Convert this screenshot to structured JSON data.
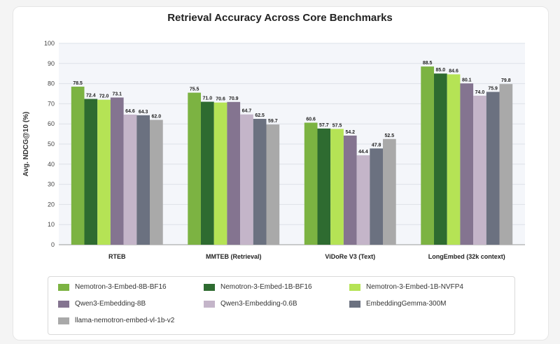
{
  "chart_data": {
    "type": "bar",
    "title": "Retrieval Accuracy Across Core Benchmarks",
    "xlabel": "",
    "ylabel": "Avg. NDCG@10 (%)",
    "ylim": [
      0,
      100
    ],
    "yticks": [
      "0",
      "10",
      "20",
      "30",
      "40",
      "50",
      "60",
      "70",
      "80",
      "90",
      "100"
    ],
    "grid": true,
    "legend_position": "bottom",
    "categories": [
      "RTEB",
      "MMTEB (Retrieval)",
      "ViDoRe V3 (Text)",
      "LongEmbed (32k context)"
    ],
    "series": [
      {
        "name": "Nemotron-3-Embed-8B-BF16",
        "color": "#7cb342",
        "values": [
          78.5,
          75.5,
          60.6,
          88.5
        ],
        "labels": [
          "78.5",
          "75.5",
          "60.6",
          "88.5"
        ]
      },
      {
        "name": "Nemotron-3-Embed-1B-BF16",
        "color": "#2e6b30",
        "values": [
          72.4,
          71.0,
          57.7,
          85.0
        ],
        "labels": [
          "72.4",
          "71.0",
          "57.7",
          "85.0"
        ]
      },
      {
        "name": "Nemotron-3-Embed-1B-NVFP4",
        "color": "#b5e355",
        "values": [
          72.0,
          70.6,
          57.5,
          84.6
        ],
        "labels": [
          "72.0",
          "70.6",
          "57.5",
          "84.6"
        ]
      },
      {
        "name": "Qwen3-Embedding-8B",
        "color": "#847490",
        "values": [
          73.1,
          70.9,
          54.2,
          80.1
        ],
        "labels": [
          "73.1",
          "70.9",
          "54.2",
          "80.1"
        ]
      },
      {
        "name": "Qwen3-Embedding-0.6B",
        "color": "#c4b5c9",
        "values": [
          64.6,
          64.7,
          44.4,
          74.0
        ],
        "labels": [
          "64.6",
          "64.7",
          "44.4",
          "74.0"
        ]
      },
      {
        "name": "EmbeddingGemma-300M",
        "color": "#6b7180",
        "values": [
          64.3,
          62.5,
          47.8,
          75.9
        ],
        "labels": [
          "64.3",
          "62.5",
          "47.8",
          "75.9"
        ]
      },
      {
        "name": "llama-nemotron-embed-vl-1b-v2",
        "color": "#a9a9a9",
        "values": [
          62.0,
          59.7,
          52.5,
          79.8
        ],
        "labels": [
          "62.0",
          "59.7",
          "52.5",
          "79.8"
        ]
      }
    ]
  }
}
